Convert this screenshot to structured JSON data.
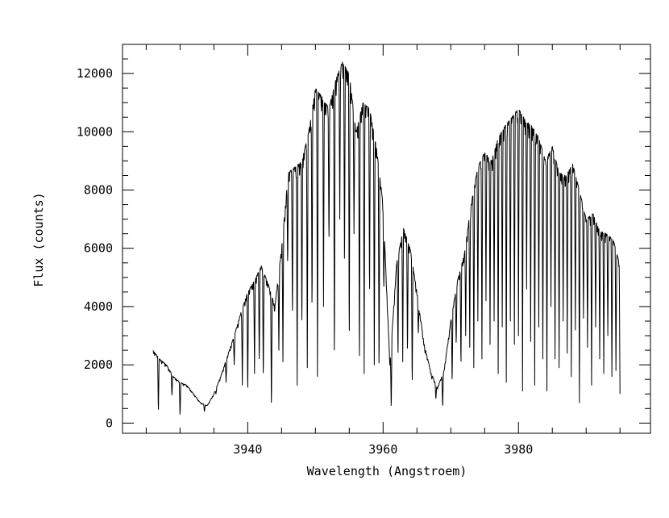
{
  "chart_data": {
    "type": "line",
    "title": "",
    "xlabel": "Wavelength (Angstroem)",
    "ylabel": "Flux (counts)",
    "xlim": [
      3921.5,
      3999.5
    ],
    "ylim": [
      -350,
      13000
    ],
    "x_major_ticks": [
      3940,
      3960,
      3980
    ],
    "x_tick_labels": [
      "3940",
      "3960",
      "3980"
    ],
    "y_major_ticks": [
      0,
      2000,
      4000,
      6000,
      8000,
      10000,
      12000
    ],
    "y_tick_labels": [
      "0",
      "2000",
      "4000",
      "6000",
      "8000",
      "10000",
      "12000"
    ],
    "grid": false,
    "legend": "none",
    "line_color": "#000000",
    "series": [
      {
        "envelope_x": [
          3926,
          3927,
          3928,
          3929,
          3930,
          3931,
          3932,
          3933,
          3934,
          3935,
          3936,
          3937,
          3938,
          3939,
          3940,
          3941,
          3942,
          3943,
          3944,
          3945,
          3946,
          3947,
          3948,
          3949,
          3950,
          3951,
          3952,
          3953,
          3954,
          3955,
          3956,
          3957,
          3958,
          3959,
          3960,
          3961,
          3962,
          3963,
          3964,
          3965,
          3966,
          3967,
          3968,
          3969,
          3970,
          3971,
          3972,
          3973,
          3974,
          3975,
          3976,
          3977,
          3978,
          3979,
          3980,
          3981,
          3982,
          3983,
          3984,
          3985,
          3986,
          3987,
          3988,
          3989,
          3990,
          3991,
          3992,
          3993,
          3994,
          3995
        ],
        "envelope_y": [
          2500,
          2200,
          2000,
          1600,
          1400,
          1300,
          1000,
          700,
          600,
          1000,
          1600,
          2300,
          3000,
          3800,
          4500,
          4900,
          5400,
          4800,
          4000,
          6000,
          8600,
          8800,
          9000,
          10000,
          11500,
          11200,
          10800,
          11800,
          12400,
          12000,
          10000,
          11000,
          10800,
          9500,
          7500,
          2000,
          5500,
          6700,
          6000,
          4500,
          2800,
          1800,
          1200,
          1800,
          3500,
          4900,
          5800,
          7500,
          8800,
          9300,
          9000,
          9800,
          10200,
          10500,
          10800,
          10400,
          10200,
          9800,
          9000,
          9500,
          8600,
          8500,
          8900,
          8000,
          7000,
          7200,
          6600,
          6500,
          6300,
          5400
        ],
        "dips": [
          {
            "x": 3926.8,
            "y": 300
          },
          {
            "x": 3928.8,
            "y": 900
          },
          {
            "x": 3930.0,
            "y": 200
          },
          {
            "x": 3933.6,
            "y": 380
          },
          {
            "x": 3935.3,
            "y": 1000
          },
          {
            "x": 3936.8,
            "y": 1400
          },
          {
            "x": 3938.0,
            "y": 2000
          },
          {
            "x": 3939.2,
            "y": 1300
          },
          {
            "x": 3940.0,
            "y": 900
          },
          {
            "x": 3941.0,
            "y": 1700
          },
          {
            "x": 3941.7,
            "y": 1900
          },
          {
            "x": 3942.3,
            "y": 1400
          },
          {
            "x": 3943.5,
            "y": 350
          },
          {
            "x": 3944.6,
            "y": 2500
          },
          {
            "x": 3945.2,
            "y": 2100
          },
          {
            "x": 3945.9,
            "y": 5300
          },
          {
            "x": 3946.6,
            "y": 3400
          },
          {
            "x": 3947.3,
            "y": 1300
          },
          {
            "x": 3948.0,
            "y": 3000
          },
          {
            "x": 3948.8,
            "y": 1900
          },
          {
            "x": 3949.5,
            "y": 3500
          },
          {
            "x": 3950.3,
            "y": 1600
          },
          {
            "x": 3951.2,
            "y": 4000
          },
          {
            "x": 3952.0,
            "y": 6000
          },
          {
            "x": 3952.8,
            "y": 1600
          },
          {
            "x": 3953.6,
            "y": 7000
          },
          {
            "x": 3954.3,
            "y": 5000
          },
          {
            "x": 3955.0,
            "y": 2300
          },
          {
            "x": 3955.7,
            "y": 6500
          },
          {
            "x": 3956.5,
            "y": 1500
          },
          {
            "x": 3957.2,
            "y": 1700
          },
          {
            "x": 3958.0,
            "y": 4000
          },
          {
            "x": 3958.7,
            "y": 2000
          },
          {
            "x": 3959.4,
            "y": 1400
          },
          {
            "x": 3960.1,
            "y": 4500
          },
          {
            "x": 3961.2,
            "y": 400
          },
          {
            "x": 3962.2,
            "y": 2100
          },
          {
            "x": 3962.9,
            "y": 2100
          },
          {
            "x": 3963.6,
            "y": 2200
          },
          {
            "x": 3964.3,
            "y": 1100
          },
          {
            "x": 3965.2,
            "y": 3000
          },
          {
            "x": 3966.2,
            "y": 2400
          },
          {
            "x": 3967.2,
            "y": 1500
          },
          {
            "x": 3967.8,
            "y": 800
          },
          {
            "x": 3968.8,
            "y": 500
          },
          {
            "x": 3970.2,
            "y": 1300
          },
          {
            "x": 3970.8,
            "y": 2600
          },
          {
            "x": 3971.5,
            "y": 1800
          },
          {
            "x": 3972.2,
            "y": 3000
          },
          {
            "x": 3972.8,
            "y": 2600
          },
          {
            "x": 3973.4,
            "y": 1900
          },
          {
            "x": 3974.0,
            "y": 3500
          },
          {
            "x": 3974.6,
            "y": 2200
          },
          {
            "x": 3975.2,
            "y": 4200
          },
          {
            "x": 3975.8,
            "y": 2700
          },
          {
            "x": 3976.4,
            "y": 3500
          },
          {
            "x": 3977.0,
            "y": 1700
          },
          {
            "x": 3977.6,
            "y": 3300
          },
          {
            "x": 3978.2,
            "y": 1400
          },
          {
            "x": 3978.8,
            "y": 3500
          },
          {
            "x": 3979.4,
            "y": 2700
          },
          {
            "x": 3980.0,
            "y": 3000
          },
          {
            "x": 3980.6,
            "y": 1100
          },
          {
            "x": 3981.2,
            "y": 4600
          },
          {
            "x": 3981.8,
            "y": 2800
          },
          {
            "x": 3982.4,
            "y": 1300
          },
          {
            "x": 3983.0,
            "y": 3300
          },
          {
            "x": 3983.6,
            "y": 2200
          },
          {
            "x": 3984.2,
            "y": 1100
          },
          {
            "x": 3984.8,
            "y": 4000
          },
          {
            "x": 3985.4,
            "y": 2200
          },
          {
            "x": 3986.0,
            "y": 1900
          },
          {
            "x": 3986.6,
            "y": 3500
          },
          {
            "x": 3987.2,
            "y": 2400
          },
          {
            "x": 3987.8,
            "y": 1600
          },
          {
            "x": 3988.4,
            "y": 3200
          },
          {
            "x": 3989.0,
            "y": 700
          },
          {
            "x": 3989.6,
            "y": 3600
          },
          {
            "x": 3990.2,
            "y": 2600
          },
          {
            "x": 3990.8,
            "y": 1300
          },
          {
            "x": 3991.4,
            "y": 3300
          },
          {
            "x": 3992.0,
            "y": 2200
          },
          {
            "x": 3992.6,
            "y": 1700
          },
          {
            "x": 3993.2,
            "y": 3000
          },
          {
            "x": 3993.8,
            "y": 1600
          },
          {
            "x": 3994.4,
            "y": 1800
          },
          {
            "x": 3995.0,
            "y": 1000
          }
        ]
      }
    ]
  }
}
